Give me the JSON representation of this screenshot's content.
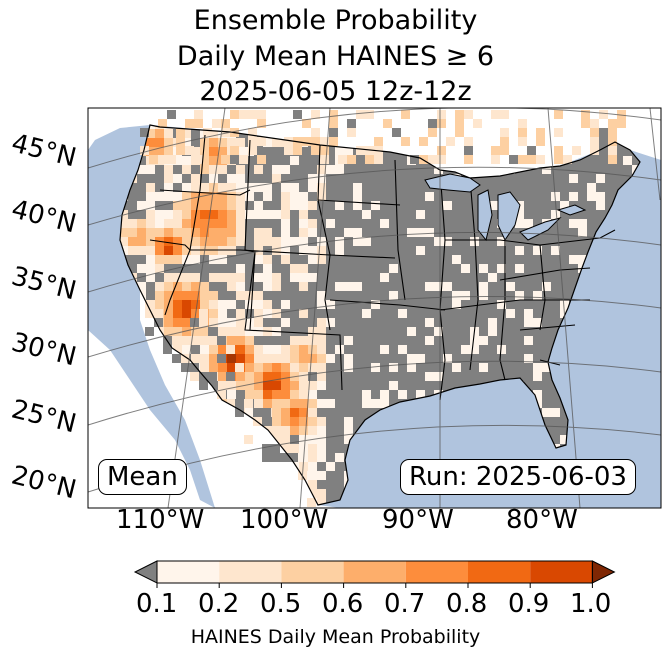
{
  "title": {
    "line1": "Ensemble Probability",
    "line2": "Daily Mean HAINES ≥ 6",
    "line3": "2025-06-05 12z-12z"
  },
  "map": {
    "lat_labels": [
      "45°N",
      "40°N",
      "35°N",
      "30°N",
      "25°N",
      "20°N"
    ],
    "lon_labels": [
      "110°W",
      "100°W",
      "90°W",
      "80°W"
    ],
    "stat_label": "Mean",
    "run_label": "Run: 2025-06-03",
    "colors": {
      "ocean": "#b0c4de",
      "below_min": "#808080",
      "land_outside": "#ffffff"
    }
  },
  "colorbar": {
    "label": "HAINES Daily Mean Probability",
    "ticks": [
      "0.1",
      "0.2",
      "0.5",
      "0.6",
      "0.7",
      "0.8",
      "0.9",
      "1.0"
    ],
    "colors": [
      "#fff5eb",
      "#fee6ce",
      "#fdd0a2",
      "#fdae6b",
      "#fd8d3c",
      "#f16913",
      "#d94801",
      "#a63603"
    ],
    "under_color": "#808080",
    "over_color": "#7f2704"
  }
}
